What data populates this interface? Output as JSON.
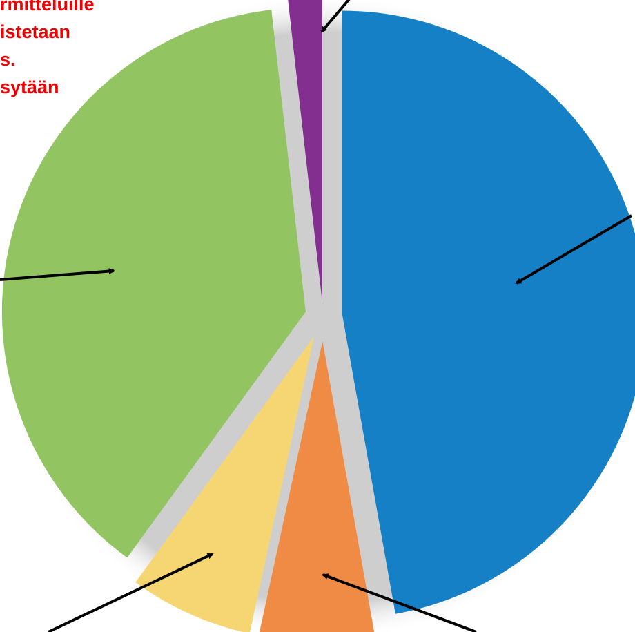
{
  "annotation": {
    "lines": [
      "rmitteluille",
      "istetaan",
      "s.",
      "sytään"
    ],
    "color": "#f00000"
  },
  "chart_data": {
    "type": "pie",
    "exploded": true,
    "slices": [
      {
        "value": 47.2,
        "color": "#1580c5"
      },
      {
        "value": 6.2,
        "color": "#f08b46"
      },
      {
        "value": 6.6,
        "color": "#f6d672"
      },
      {
        "value": 38.2,
        "color": "#92c462"
      },
      {
        "value": 1.8,
        "color": "#832f8f"
      }
    ],
    "arrow_color": "#000000",
    "background_color": "#ffffff",
    "shadow_color": "#d2d2d2"
  }
}
